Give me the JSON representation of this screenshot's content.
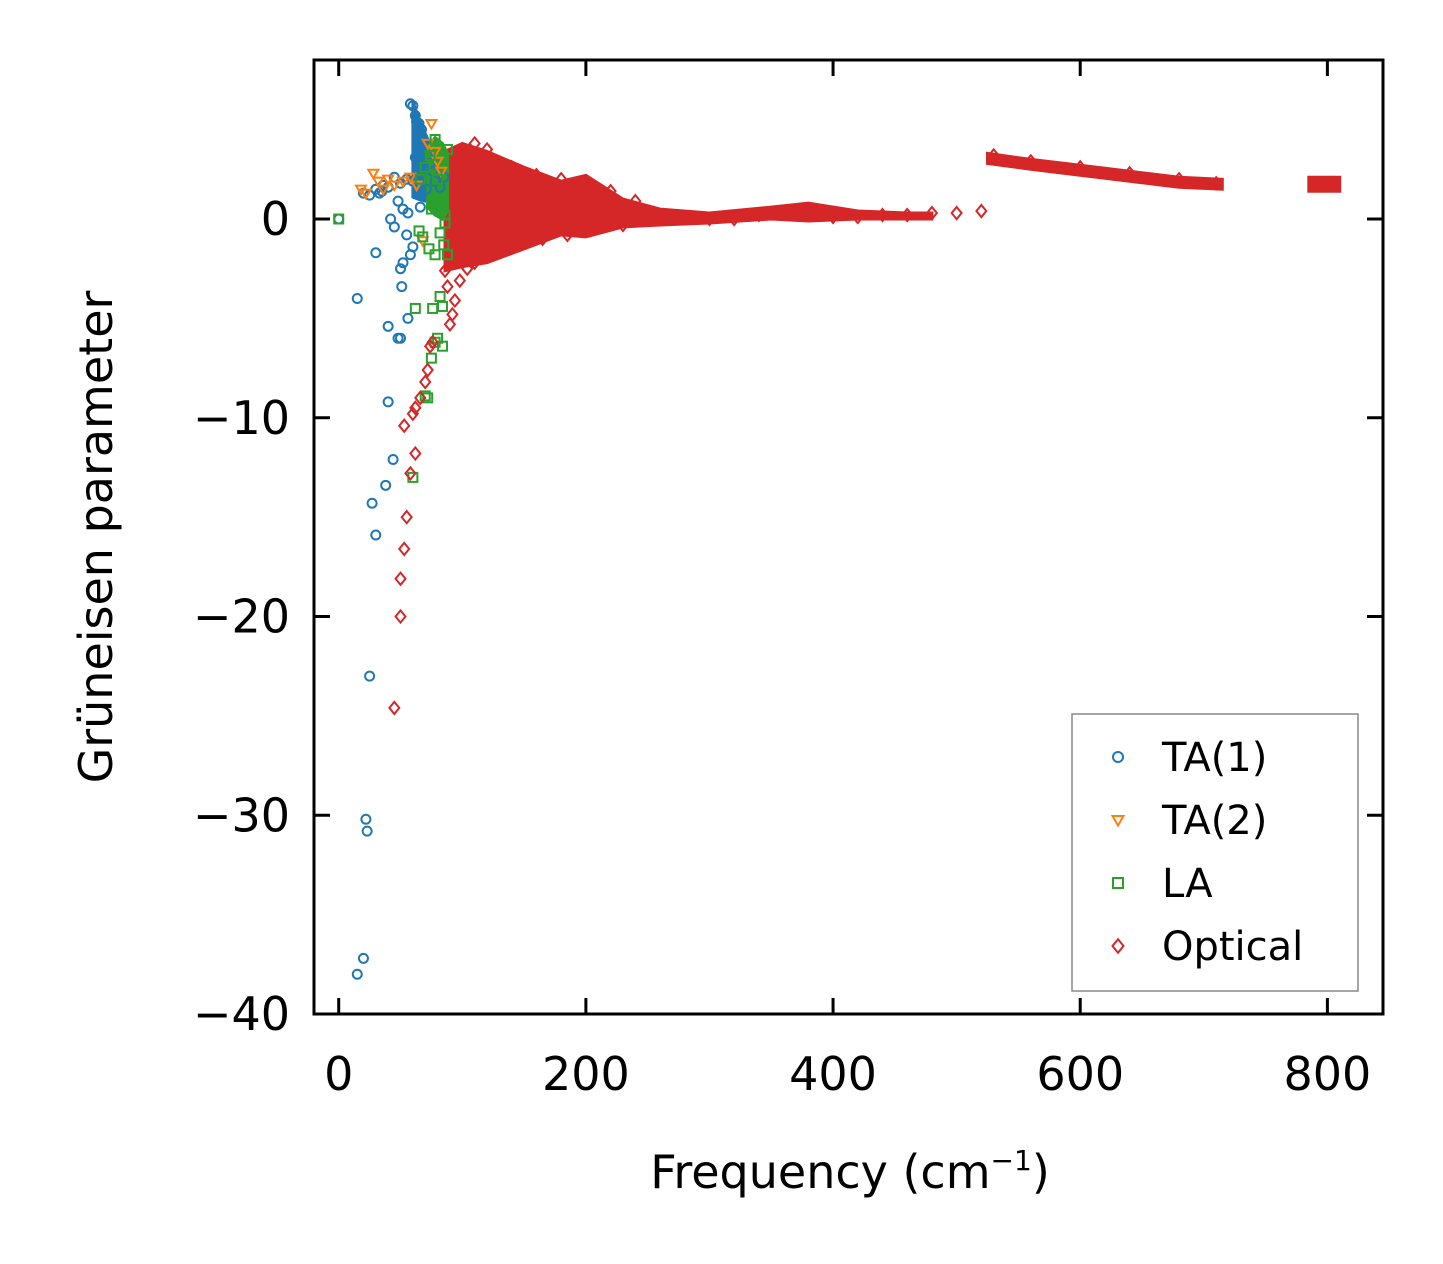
{
  "chart_data": {
    "type": "scatter",
    "xlabel_main": "Frequency (cm",
    "xlabel_sup": "−1",
    "xlabel_close": ")",
    "ylabel": "Grüneisen parameter",
    "xlim": [
      -20,
      845
    ],
    "ylim": [
      -40,
      8
    ],
    "xticks": [
      0,
      200,
      400,
      600,
      800
    ],
    "xtick_labels": [
      "0",
      "200",
      "400",
      "600",
      "800"
    ],
    "yticks": [
      0,
      -10,
      -20,
      -30,
      -40
    ],
    "ytick_labels": [
      "0",
      "−10",
      "−20",
      "−30",
      "−40"
    ],
    "legend_position": "lower-right",
    "series": [
      {
        "name": "TA(1)",
        "marker": "circle",
        "color": "#1f77b4",
        "points": [
          [
            0,
            0
          ],
          [
            15,
            -4
          ],
          [
            15,
            -38
          ],
          [
            20,
            -37.2
          ],
          [
            22,
            -30.2
          ],
          [
            23,
            -30.8
          ],
          [
            25,
            -23
          ],
          [
            27,
            -14.3
          ],
          [
            30,
            -15.9
          ],
          [
            30,
            -1.7
          ],
          [
            33,
            1.3
          ],
          [
            36,
            1.7
          ],
          [
            38,
            -13.4
          ],
          [
            40,
            -9.2
          ],
          [
            40,
            -5.4
          ],
          [
            42,
            0
          ],
          [
            44,
            -12.1
          ],
          [
            45,
            -0.4
          ],
          [
            48,
            -6
          ],
          [
            50,
            -6
          ],
          [
            50,
            -2.5
          ],
          [
            51,
            -3.4
          ],
          [
            52,
            -2.2
          ],
          [
            55,
            -0.8
          ],
          [
            56,
            -5
          ],
          [
            58,
            -1.8
          ],
          [
            60,
            -1.4
          ],
          [
            62,
            3.1
          ],
          [
            58,
            5.8
          ],
          [
            60,
            5.7
          ],
          [
            62,
            5.2
          ],
          [
            63,
            4.9
          ],
          [
            65,
            4.8
          ],
          [
            67,
            4.5
          ],
          [
            68,
            4.1
          ],
          [
            70,
            3.8
          ],
          [
            72,
            3.2
          ],
          [
            74,
            2.8
          ],
          [
            76,
            2.4
          ],
          [
            70,
            2.6
          ],
          [
            65,
            2.2
          ],
          [
            60,
            1.9
          ],
          [
            55,
            2
          ],
          [
            50,
            1.8
          ],
          [
            45,
            2.1
          ],
          [
            40,
            1.6
          ],
          [
            35,
            1.4
          ],
          [
            30,
            1.5
          ],
          [
            25,
            1.2
          ],
          [
            20,
            1.3
          ],
          [
            48,
            0.9
          ],
          [
            52,
            0.5
          ],
          [
            56,
            0.3
          ],
          [
            66,
            0.6
          ],
          [
            71,
            1.5
          ],
          [
            78,
            1.9
          ],
          [
            82,
            1.6
          ],
          [
            85,
            2.1
          ]
        ]
      },
      {
        "name": "TA(2)",
        "marker": "triangle-down",
        "color": "#ff7f0e",
        "points": [
          [
            18,
            1.5
          ],
          [
            22,
            1.3
          ],
          [
            28,
            2.3
          ],
          [
            32,
            1.9
          ],
          [
            36,
            1.5
          ],
          [
            40,
            2
          ],
          [
            45,
            1.7
          ],
          [
            52,
            1.9
          ],
          [
            58,
            2.1
          ],
          [
            63,
            1.7
          ],
          [
            68,
            -1.1
          ],
          [
            72,
            3.8
          ],
          [
            75,
            4.8
          ],
          [
            78,
            3.4
          ],
          [
            80,
            2.9
          ],
          [
            83,
            2.4
          ]
        ]
      },
      {
        "name": "LA",
        "marker": "square",
        "color": "#2ca02c",
        "points": [
          [
            0,
            0
          ],
          [
            60,
            -13
          ],
          [
            62,
            -4.5
          ],
          [
            65,
            -0.6
          ],
          [
            68,
            -0.9
          ],
          [
            70,
            -8.9
          ],
          [
            72,
            -9
          ],
          [
            73,
            -1.5
          ],
          [
            75,
            -7
          ],
          [
            75,
            0.5
          ],
          [
            76,
            -4.5
          ],
          [
            78,
            -1.8
          ],
          [
            78,
            -6.2
          ],
          [
            80,
            -6
          ],
          [
            80,
            2
          ],
          [
            82,
            -0.7
          ],
          [
            82,
            -3.9
          ],
          [
            84,
            -6.4
          ],
          [
            85,
            -1.3
          ],
          [
            86,
            0.2
          ],
          [
            88,
            3.5
          ],
          [
            88,
            -1.8
          ],
          [
            78,
            4
          ],
          [
            74,
            3.2
          ],
          [
            70,
            2.6
          ],
          [
            66,
            2
          ],
          [
            84,
            -4.4
          ],
          [
            86,
            -0.2
          ]
        ]
      },
      {
        "name": "Optical",
        "marker": "diamond",
        "color": "#d62728",
        "points": [
          [
            45,
            -24.6
          ],
          [
            50,
            -20
          ],
          [
            50,
            -18.1
          ],
          [
            53,
            -16.6
          ],
          [
            55,
            -15
          ],
          [
            58,
            -12.8
          ],
          [
            62,
            -11.8
          ],
          [
            53,
            -10.4
          ],
          [
            60,
            -9.8
          ],
          [
            62,
            -9.5
          ],
          [
            66,
            -9
          ],
          [
            70,
            -8.2
          ],
          [
            72,
            -7.6
          ],
          [
            74,
            -6.4
          ],
          [
            76,
            -6.2
          ],
          [
            90,
            -5.3
          ],
          [
            92,
            -4.8
          ],
          [
            94,
            -4.1
          ],
          [
            88,
            -3.4
          ],
          [
            86,
            -2.6
          ],
          [
            98,
            -3.1
          ],
          [
            104,
            -2.5
          ],
          [
            110,
            -2.2
          ],
          [
            120,
            -1.8
          ],
          [
            130,
            -1.5
          ],
          [
            145,
            -1.3
          ],
          [
            165,
            -1
          ],
          [
            185,
            -0.8
          ],
          [
            200,
            -0.6
          ],
          [
            230,
            -0.3
          ],
          [
            260,
            0
          ],
          [
            300,
            0
          ],
          [
            340,
            0.2
          ],
          [
            380,
            0.3
          ],
          [
            420,
            0.1
          ],
          [
            460,
            0.2
          ],
          [
            480,
            0.3
          ],
          [
            500,
            0.3
          ],
          [
            520,
            0.4
          ],
          [
            100,
            3
          ],
          [
            110,
            3.8
          ],
          [
            120,
            3.5
          ],
          [
            140,
            2.6
          ],
          [
            160,
            2.2
          ],
          [
            180,
            2
          ],
          [
            200,
            1.7
          ],
          [
            220,
            1.4
          ],
          [
            240,
            0.9
          ],
          [
            108,
            0.5
          ],
          [
            125,
            0.4
          ],
          [
            150,
            0.4
          ],
          [
            175,
            0.3
          ],
          [
            195,
            0.2
          ],
          [
            210,
            0.3
          ],
          [
            235,
            0.2
          ],
          [
            255,
            0.3
          ],
          [
            275,
            0.1
          ],
          [
            320,
            0
          ],
          [
            360,
            0.3
          ],
          [
            400,
            0.1
          ],
          [
            440,
            0.2
          ],
          [
            530,
            3.2
          ],
          [
            560,
            2.9
          ],
          [
            600,
            2.6
          ],
          [
            640,
            2.3
          ],
          [
            680,
            2
          ],
          [
            710,
            1.8
          ],
          [
            790,
            1.8
          ],
          [
            805,
            1.8
          ]
        ]
      }
    ],
    "bands": [
      {
        "series": "Optical",
        "color": "#d62728",
        "x": [
          86,
          100,
          120,
          150,
          180,
          200,
          230,
          260,
          300,
          350,
          380,
          420,
          460,
          480
        ],
        "upper": [
          3.4,
          3.8,
          3.4,
          2.6,
          1.9,
          2.2,
          1,
          0.5,
          0.3,
          0.6,
          0.8,
          0.4,
          0.3,
          0.3
        ],
        "lower": [
          -2.6,
          -2.4,
          -2.2,
          -1.5,
          -0.8,
          -0.9,
          -0.4,
          -0.3,
          -0.2,
          0,
          -0.1,
          0,
          0,
          0
        ]
      },
      {
        "series": "Optical",
        "color": "#d62728",
        "x": [
          525,
          560,
          600,
          640,
          680,
          715
        ],
        "upper": [
          3.3,
          3.0,
          2.7,
          2.4,
          2.1,
          2.0
        ],
        "lower": [
          2.8,
          2.5,
          2.2,
          1.9,
          1.6,
          1.5
        ]
      },
      {
        "series": "Optical",
        "color": "#d62728",
        "x": [
          785,
          810
        ],
        "upper": [
          2.1,
          2.1
        ],
        "lower": [
          1.4,
          1.4
        ]
      },
      {
        "series": "TA(1)",
        "color": "#1f77b4",
        "x": [
          60,
          64,
          70,
          76,
          80,
          84
        ],
        "upper": [
          5.9,
          5.2,
          4.3,
          3.5,
          2.8,
          2.3
        ],
        "lower": [
          1.1,
          1.0,
          0.9,
          0.9,
          1.0,
          1.1
        ]
      },
      {
        "series": "LA",
        "color": "#2ca02c",
        "x": [
          72,
          78,
          84,
          88
        ],
        "upper": [
          3.6,
          4.1,
          3.8,
          3.3
        ],
        "lower": [
          0.6,
          0.2,
          0.0,
          0.4
        ]
      }
    ]
  }
}
